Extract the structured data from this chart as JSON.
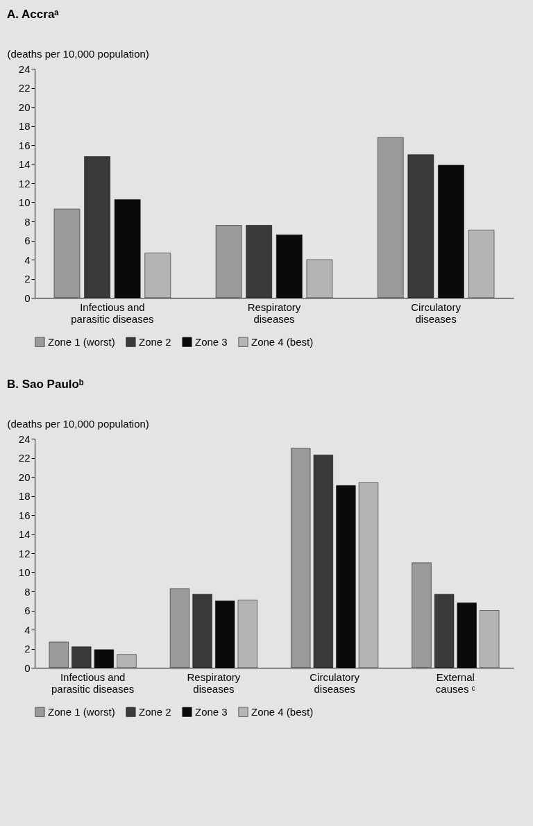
{
  "chart_data": [
    {
      "type": "bar",
      "title": "A. Accraᵃ",
      "ylabel": "(deaths per 10,000 population)",
      "categories": [
        "Infectious and parasitic diseases",
        "Respiratory diseases",
        "Circulatory diseases"
      ],
      "series": [
        {
          "name": "Zone 1 (worst)",
          "color": "#9a9a9a",
          "values": [
            9.3,
            7.6,
            16.8
          ]
        },
        {
          "name": "Zone 2",
          "color": "#3a3a3a",
          "values": [
            14.8,
            7.6,
            15.0
          ]
        },
        {
          "name": "Zone 3",
          "color": "#0a0a0a",
          "values": [
            10.3,
            6.6,
            13.9
          ]
        },
        {
          "name": "Zone 4 (best)",
          "color": "#b4b4b4",
          "values": [
            4.7,
            4.0,
            7.1
          ]
        }
      ],
      "ylim": [
        0,
        24
      ],
      "yticks": [
        0,
        2,
        4,
        6,
        8,
        10,
        12,
        14,
        16,
        18,
        20,
        22,
        24
      ],
      "legend": "bottom"
    },
    {
      "type": "bar",
      "title": "B. Sao Pauloᵇ",
      "ylabel": "(deaths per 10,000 population)",
      "categories": [
        "Infectious and parasitic diseases",
        "Respiratory diseases",
        "Circulatory diseases",
        "External causes ᶜ"
      ],
      "series": [
        {
          "name": "Zone 1 (worst)",
          "color": "#9a9a9a",
          "values": [
            2.7,
            8.3,
            23.0,
            11.0
          ]
        },
        {
          "name": "Zone 2",
          "color": "#3a3a3a",
          "values": [
            2.2,
            7.7,
            22.3,
            7.7
          ]
        },
        {
          "name": "Zone 3",
          "color": "#0a0a0a",
          "values": [
            1.9,
            7.0,
            19.1,
            6.8
          ]
        },
        {
          "name": "Zone 4 (best)",
          "color": "#b4b4b4",
          "values": [
            1.4,
            7.1,
            19.4,
            6.0
          ]
        }
      ],
      "ylim": [
        0,
        24
      ],
      "yticks": [
        0,
        2,
        4,
        6,
        8,
        10,
        12,
        14,
        16,
        18,
        20,
        22,
        24
      ],
      "legend": "bottom"
    }
  ]
}
